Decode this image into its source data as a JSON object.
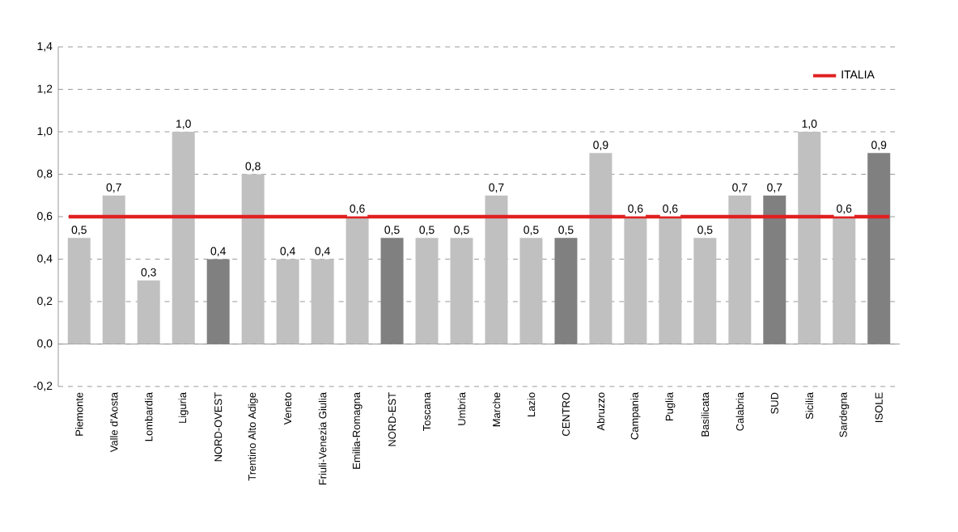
{
  "chart_data": {
    "type": "bar",
    "categories": [
      "Piemonte",
      "Valle d'Aosta",
      "Lombardia",
      "Liguria",
      "NORD-OVEST",
      "Trentino Alto Adige",
      "Veneto",
      "Friuli-Venezia Giulia",
      "Emilia-Romagna",
      "NORD-EST",
      "Toscana",
      "Umbria",
      "Marche",
      "Lazio",
      "CENTRO",
      "Abruzzo",
      "Campania",
      "Puglia",
      "Basilicata",
      "Calabria",
      "SUD",
      "Sicilia",
      "Sardegna",
      "ISOLE"
    ],
    "values": [
      0.5,
      0.7,
      0.3,
      1.0,
      0.4,
      0.8,
      0.4,
      0.4,
      0.6,
      0.5,
      0.5,
      0.5,
      0.7,
      0.5,
      0.5,
      0.9,
      0.6,
      0.6,
      0.5,
      0.7,
      0.7,
      1.0,
      0.6,
      0.9
    ],
    "value_labels": [
      "0,5",
      "0,7",
      "0,3",
      "1,0",
      "0,4",
      "0,8",
      "0,4",
      "0,4",
      "0,6",
      "0,5",
      "0,5",
      "0,5",
      "0,7",
      "0,5",
      "0,5",
      "0,9",
      "0,6",
      "0,6",
      "0,5",
      "0,7",
      "0,7",
      "1,0",
      "0,6",
      "0,9"
    ],
    "colors": [
      "#c0c0c0",
      "#c0c0c0",
      "#c0c0c0",
      "#c0c0c0",
      "#808080",
      "#c0c0c0",
      "#c0c0c0",
      "#c0c0c0",
      "#c0c0c0",
      "#808080",
      "#c0c0c0",
      "#c0c0c0",
      "#c0c0c0",
      "#c0c0c0",
      "#808080",
      "#c0c0c0",
      "#c0c0c0",
      "#c0c0c0",
      "#c0c0c0",
      "#c0c0c0",
      "#808080",
      "#c0c0c0",
      "#c0c0c0",
      "#808080"
    ],
    "ylim": [
      -0.2,
      1.4
    ],
    "yticks": [
      {
        "value": -0.2,
        "label": "-0,2"
      },
      {
        "value": 0.0,
        "label": "0,0"
      },
      {
        "value": 0.2,
        "label": "0,2"
      },
      {
        "value": 0.4,
        "label": "0,4"
      },
      {
        "value": 0.6,
        "label": "0,6"
      },
      {
        "value": 0.8,
        "label": "0,8"
      },
      {
        "value": 1.0,
        "label": "1,0"
      },
      {
        "value": 1.2,
        "label": "1,2"
      },
      {
        "value": 1.4,
        "label": "1,4"
      }
    ],
    "ref_lines": [
      {
        "axis": "y",
        "value": 0.6,
        "label": "ITALIA",
        "color": "#e02020"
      }
    ],
    "grid": "y",
    "legend": "top right"
  }
}
